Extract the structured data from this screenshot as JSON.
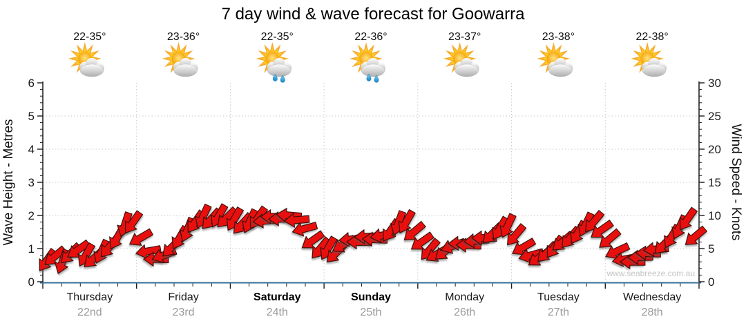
{
  "chart_data": {
    "type": "wind_wave_forecast",
    "title": "7 day wind & wave forecast for Goowarra",
    "watermark": "www.seabreeze.com.au",
    "left_axis": {
      "label": "Wave Height - Metres",
      "min": 0,
      "max": 6,
      "major_step": 1,
      "minor_step": 0.2
    },
    "right_axis": {
      "label": "Wind Speed - Knots",
      "min": 0,
      "max": 30,
      "major_step": 5,
      "minor_step": 1
    },
    "grid": {
      "horizontal_dotted_at_metres": [
        1,
        2,
        3,
        4,
        5
      ],
      "vertical_dotted_at_day_boundaries": true
    },
    "days": [
      {
        "name": "Thursday",
        "date": "22nd",
        "temp": "22-35°",
        "icon": "sun-cloud",
        "weekend": false
      },
      {
        "name": "Friday",
        "date": "23rd",
        "temp": "23-36°",
        "icon": "sun-cloud",
        "weekend": false
      },
      {
        "name": "Saturday",
        "date": "24th",
        "temp": "22-35°",
        "icon": "sun-cloud-rain",
        "weekend": true
      },
      {
        "name": "Sunday",
        "date": "25th",
        "temp": "22-36°",
        "icon": "sun-cloud-rain",
        "weekend": true
      },
      {
        "name": "Monday",
        "date": "26th",
        "temp": "23-37°",
        "icon": "sun-cloud",
        "weekend": false
      },
      {
        "name": "Tuesday",
        "date": "27th",
        "temp": "23-38°",
        "icon": "sun-cloud",
        "weekend": false
      },
      {
        "name": "Wednesday",
        "date": "28th",
        "temp": "22-38°",
        "icon": "sun-cloud",
        "weekend": false
      }
    ],
    "samples_per_day": 12,
    "wind_speed_knots": [
      3.2,
      3.8,
      3.0,
      4.2,
      4.8,
      4.0,
      3.5,
      4.5,
      5.2,
      6.6,
      8.6,
      8.9,
      6.6,
      4.6,
      3.4,
      4.0,
      5.2,
      6.6,
      7.8,
      9.0,
      9.8,
      9.4,
      9.9,
      9.6,
      9.4,
      8.7,
      9.1,
      9.6,
      9.2,
      9.8,
      9.5,
      10.0,
      9.3,
      8.0,
      6.2,
      5.0,
      5.0,
      4.3,
      5.6,
      6.4,
      6.0,
      6.8,
      6.4,
      7.0,
      7.7,
      8.8,
      9.0,
      7.5,
      6.0,
      4.8,
      4.2,
      4.6,
      5.4,
      5.8,
      5.5,
      6.2,
      6.6,
      7.2,
      8.0,
      8.4,
      7.0,
      5.2,
      4.0,
      3.6,
      4.4,
      5.2,
      6.0,
      6.6,
      7.4,
      8.6,
      9.0,
      7.8,
      6.4,
      4.6,
      3.4,
      3.0,
      3.7,
      4.3,
      4.9,
      5.6,
      6.8,
      8.2,
      9.4,
      6.8
    ],
    "wind_direction_deg": [
      35,
      50,
      20,
      45,
      55,
      30,
      48,
      25,
      40,
      30,
      18,
      35,
      60,
      80,
      90,
      70,
      45,
      30,
      22,
      35,
      25,
      42,
      30,
      45,
      30,
      42,
      25,
      35,
      85,
      90,
      88,
      95,
      85,
      75,
      55,
      40,
      30,
      45,
      60,
      85,
      90,
      88,
      92,
      80,
      35,
      20,
      30,
      50,
      55,
      40,
      60,
      50,
      70,
      88,
      92,
      85,
      90,
      45,
      30,
      25,
      40,
      60,
      75,
      55,
      45,
      35,
      50,
      40,
      30,
      25,
      40,
      55,
      50,
      65,
      80,
      90,
      88,
      92,
      85,
      45,
      30,
      25,
      35,
      50
    ],
    "colors": {
      "arrow": "#e8100e",
      "arrow_outline": "#330d08",
      "grid": "#c9c9c9",
      "axis": "#1a1a1a",
      "bottom_axis": "#336e96",
      "date_text": "#9a9a9a",
      "watermark": "#c4c4c4",
      "sun": "#f5a623",
      "sun_core": "#ffd94d",
      "cloud_top": "#fdfdfd",
      "cloud_bottom": "#aeaeae",
      "rain_drop": "#2fa8e8"
    }
  }
}
